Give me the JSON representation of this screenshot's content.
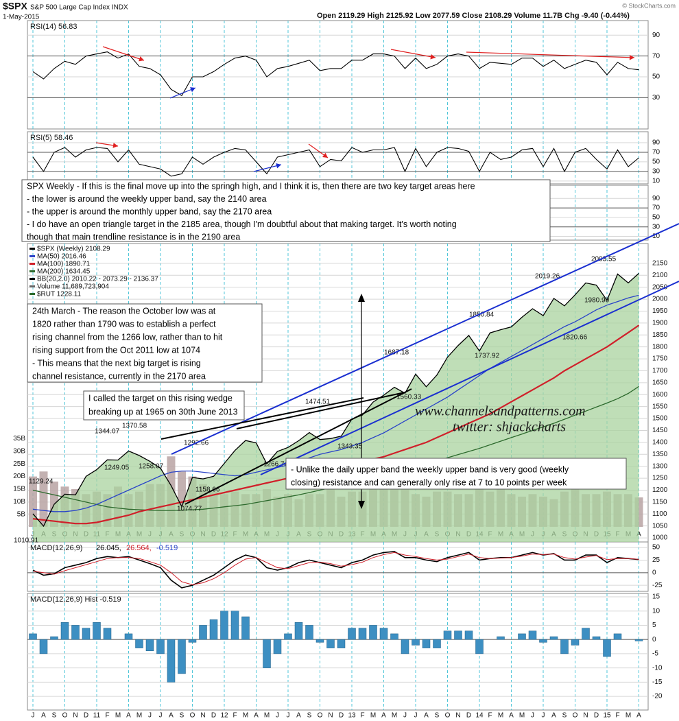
{
  "header": {
    "symbol": "$SPX",
    "name": "S&P 500 Large Cap Index INDX",
    "date": "1-May-2015",
    "quote": "Open 2119.29  High 2125.92  Low 2077.59  Close 2108.29  Volume 11.7B  Chg -9.40 (-0.44%)",
    "credit": "© StockCharts.com"
  },
  "chart_data": [
    {
      "type": "line",
      "title": "RSI(14) 56.83",
      "color": "#000000",
      "ylim": [
        0,
        104
      ],
      "yticks": [
        30,
        50,
        70,
        90
      ],
      "grid": true,
      "values": [
        55,
        48,
        58,
        65,
        62,
        70,
        72,
        74,
        68,
        72,
        60,
        58,
        52,
        38,
        32,
        50,
        50,
        55,
        62,
        68,
        70,
        66,
        50,
        58,
        60,
        63,
        66,
        56,
        58,
        58,
        66,
        66,
        72,
        72,
        70,
        58,
        68,
        58,
        62,
        70,
        72,
        70,
        58,
        64,
        63,
        62,
        68,
        68,
        60,
        66,
        58,
        62,
        66,
        64,
        52,
        64,
        58,
        56.83
      ]
    },
    {
      "type": "line",
      "title": "RSI(5) 58.46",
      "color": "#000000",
      "ylim": [
        4,
        113
      ],
      "yticks": [
        10,
        30,
        50,
        70,
        90
      ],
      "grid": true,
      "values": [
        60,
        30,
        70,
        80,
        60,
        75,
        80,
        78,
        50,
        75,
        45,
        40,
        35,
        20,
        25,
        60,
        45,
        60,
        70,
        78,
        75,
        50,
        25,
        60,
        65,
        70,
        75,
        40,
        55,
        52,
        80,
        70,
        75,
        75,
        80,
        30,
        78,
        40,
        70,
        80,
        78,
        72,
        30,
        70,
        55,
        60,
        75,
        78,
        40,
        78,
        30,
        70,
        78,
        55,
        35,
        75,
        40,
        58.46
      ]
    },
    {
      "type": "line",
      "ylim": [
        2,
        118
      ],
      "yticks": [
        10,
        30,
        50,
        70,
        90
      ],
      "grid": true
    },
    {
      "type": "line",
      "ylim": [
        983,
        2233
      ],
      "yticks": [
        1000,
        1050,
        1100,
        1150,
        1200,
        1250,
        1300,
        1350,
        1400,
        1450,
        1500,
        1550,
        1600,
        1650,
        1700,
        1750,
        1800,
        1850,
        1900,
        1950,
        2000,
        2050,
        2100,
        2150
      ],
      "grid": true,
      "y2lim": [
        0,
        37.6
      ],
      "y2ticks": [
        {
          "value": 5,
          "label": "5B"
        },
        {
          "value": 10,
          "label": "10B"
        },
        {
          "value": 15,
          "label": "15B"
        },
        {
          "value": 20,
          "label": "20B"
        },
        {
          "value": 25,
          "label": "25B"
        },
        {
          "value": 30,
          "label": "30B"
        },
        {
          "value": 35,
          "label": "35B"
        }
      ],
      "categories": [
        "J",
        "A",
        "S",
        "O",
        "N",
        "D",
        "11",
        "F",
        "M",
        "A",
        "M",
        "J",
        "J",
        "A",
        "S",
        "O",
        "N",
        "D",
        "12",
        "F",
        "M",
        "A",
        "M",
        "J",
        "J",
        "A",
        "S",
        "O",
        "N",
        "D",
        "13",
        "F",
        "M",
        "A",
        "M",
        "J",
        "J",
        "A",
        "S",
        "O",
        "N",
        "D",
        "14",
        "F",
        "M",
        "A",
        "M",
        "J",
        "J",
        "A",
        "S",
        "O",
        "N",
        "D",
        "15",
        "F",
        "M",
        "A"
      ],
      "series": [
        {
          "name": "$SPX (Weekly) 2108.29",
          "color": "#000000",
          "area_color": "#a9d39f",
          "values": [
            1101,
            1049,
            1141,
            1183,
            1180,
            1258,
            1286,
            1327,
            1326,
            1364,
            1345,
            1321,
            1292,
            1219,
            1131,
            1253,
            1247,
            1258,
            1312,
            1366,
            1408,
            1398,
            1310,
            1362,
            1379,
            1407,
            1441,
            1412,
            1416,
            1426,
            1498,
            1515,
            1569,
            1598,
            1631,
            1606,
            1686,
            1633,
            1682,
            1757,
            1806,
            1848,
            1783,
            1859,
            1872,
            1884,
            1924,
            1960,
            1931,
            2003,
            1972,
            2018,
            2068,
            2059,
            1995,
            2105,
            2068,
            2108.29
          ]
        },
        {
          "name": "MA(50) 2016.46",
          "color": "#2a44c8",
          "values": [
            1120,
            1115,
            1110,
            1110,
            1115,
            1125,
            1140,
            1160,
            1180,
            1200,
            1220,
            1240,
            1260,
            1275,
            1280,
            1280,
            1275,
            1270,
            1265,
            1260,
            1265,
            1275,
            1285,
            1295,
            1305,
            1320,
            1335,
            1350,
            1360,
            1370,
            1385,
            1400,
            1420,
            1440,
            1465,
            1490,
            1515,
            1540,
            1565,
            1590,
            1620,
            1650,
            1680,
            1710,
            1735,
            1760,
            1785,
            1810,
            1835,
            1860,
            1885,
            1905,
            1930,
            1955,
            1975,
            1990,
            2005,
            2016.46
          ]
        },
        {
          "name": "MA(100) 1890.71",
          "color": "#d0202a",
          "values": [
            1080,
            1075,
            1070,
            1065,
            1060,
            1060,
            1065,
            1075,
            1085,
            1095,
            1110,
            1120,
            1130,
            1140,
            1150,
            1160,
            1170,
            1180,
            1190,
            1200,
            1210,
            1220,
            1230,
            1240,
            1250,
            1260,
            1270,
            1280,
            1290,
            1300,
            1310,
            1320,
            1330,
            1340,
            1355,
            1370,
            1385,
            1400,
            1420,
            1440,
            1460,
            1480,
            1500,
            1520,
            1545,
            1570,
            1595,
            1620,
            1645,
            1670,
            1700,
            1725,
            1750,
            1775,
            1800,
            1830,
            1860,
            1890.71
          ]
        },
        {
          "name": "MA(200) 1634.45",
          "color": "#2d6a2d",
          "values": [
            1200,
            1190,
            1180,
            1170,
            1160,
            1150,
            1140,
            1130,
            1125,
            1120,
            1118,
            1116,
            1115,
            1115,
            1116,
            1118,
            1120,
            1125,
            1130,
            1135,
            1140,
            1148,
            1156,
            1164,
            1172,
            1180,
            1190,
            1200,
            1210,
            1220,
            1230,
            1240,
            1250,
            1262,
            1274,
            1286,
            1298,
            1310,
            1323,
            1336,
            1349,
            1362,
            1375,
            1390,
            1405,
            1420,
            1435,
            1450,
            1465,
            1480,
            1497,
            1514,
            1531,
            1548,
            1565,
            1583,
            1605,
            1634.45
          ]
        },
        {
          "name": "Volume 11,689,723,904",
          "axis": "y2",
          "color": "#b8a3a3",
          "values": [
            20,
            22,
            18,
            16,
            15,
            13,
            14,
            13,
            16,
            13,
            14,
            17,
            17,
            28,
            22,
            20,
            17,
            14,
            13,
            14,
            13,
            13,
            15,
            12,
            13,
            11,
            13,
            13,
            15,
            12,
            14,
            14,
            15,
            15,
            15,
            15,
            13,
            12,
            14,
            14,
            13,
            13,
            15,
            14,
            15,
            13,
            12,
            13,
            12,
            11,
            14,
            15,
            13,
            13,
            14,
            13,
            13,
            11.69
          ]
        }
      ],
      "legend_extra": [
        "BB(20,2.0) 2010.22 - 2073.29 - 2136.37",
        "$RUT 1228.11"
      ],
      "price_labels": [
        {
          "value": 1129.24,
          "label": "1129.24"
        },
        {
          "value": 1010.91,
          "label": "1010.91"
        },
        {
          "value": 1344.07,
          "label": "1344.07"
        },
        {
          "value": 1370.58,
          "label": "1370.58"
        },
        {
          "value": 1249.05,
          "label": "1249.05"
        },
        {
          "value": 1258.07,
          "label": "1258.07"
        },
        {
          "value": 1292.66,
          "label": "1292.66"
        },
        {
          "value": 1158.66,
          "label": "1158.66"
        },
        {
          "value": 1074.77,
          "label": "1074.77"
        },
        {
          "value": 1474.51,
          "label": "1474.51"
        },
        {
          "value": 1266.74,
          "label": "1266.74"
        },
        {
          "value": 1343.35,
          "label": "1343.35"
        },
        {
          "value": 1687.18,
          "label": "1687.18"
        },
        {
          "value": 1560.33,
          "label": "1560.33"
        },
        {
          "value": 1850.84,
          "label": "1850.84"
        },
        {
          "value": 1737.92,
          "label": "1737.92"
        },
        {
          "value": 2019.26,
          "label": "2019.26"
        },
        {
          "value": 2093.55,
          "label": "2093.55"
        },
        {
          "value": 1980.9,
          "label": "1980.90"
        },
        {
          "value": 1820.66,
          "label": "1820.66"
        }
      ],
      "notes": [
        [
          "SPX Weekly - If this is the final move up into the springh high, and I think it is, then there are two key target areas here",
          "- the lower is around the weekly upper band, say the 2140 area",
          "- the upper is around the monthly upper band, say the 2170 area",
          "- I do have an open triangle target in the 2185 area, though I'm doubtful about that making target. It's worth noting",
          "though that main trendline resistance is in the 2190 area"
        ],
        [
          "24th March - The reason the October low was at",
          "1820 rather than 1790 was to establish a perfect",
          "rising channel from the 1266 low, rather than to hit",
          "rising support from the Oct 2011 low at 1074",
          "- This means that the next big target is rising",
          "channel resistance, currently in the 2170 area"
        ],
        [
          "I called the target on this rising wedge",
          "breaking up at 1965 on 30th June 2013"
        ],
        [
          "- Unlike the daily upper band the weekly upper band is very good (weekly",
          "closing) resistance and can generally only rise at 7 to 10 points per week"
        ]
      ],
      "watermark": [
        "www.channelsandpatterns.com",
        "twitter: shjackcharts"
      ]
    },
    {
      "type": "line",
      "title": "MACD(12,26,9)",
      "readouts": [
        "26.045,",
        "26.564,",
        "-0.519"
      ],
      "ylim": [
        -37,
        61
      ],
      "yticks": [
        -25,
        0,
        25,
        50
      ],
      "grid": true,
      "series": [
        {
          "color": "#000000",
          "values": [
            5,
            -5,
            -2,
            10,
            15,
            20,
            28,
            32,
            30,
            32,
            25,
            18,
            10,
            -15,
            -30,
            -25,
            -15,
            -5,
            10,
            25,
            35,
            30,
            10,
            5,
            10,
            20,
            25,
            20,
            15,
            10,
            20,
            25,
            35,
            40,
            42,
            30,
            30,
            25,
            22,
            30,
            35,
            40,
            25,
            28,
            30,
            30,
            35,
            40,
            35,
            38,
            25,
            25,
            35,
            35,
            20,
            30,
            28,
            26.045
          ]
        },
        {
          "color": "#d0202a",
          "values": [
            3,
            0,
            -3,
            4,
            10,
            16,
            22,
            28,
            30,
            30,
            28,
            22,
            15,
            0,
            -18,
            -24,
            -20,
            -12,
            0,
            15,
            27,
            30,
            20,
            10,
            8,
            14,
            20,
            21,
            18,
            13,
            16,
            21,
            30,
            36,
            40,
            35,
            32,
            28,
            25,
            27,
            32,
            37,
            30,
            28,
            29,
            30,
            33,
            37,
            36,
            37,
            30,
            27,
            31,
            34,
            26,
            28,
            28,
            26.564
          ]
        }
      ]
    },
    {
      "type": "bar",
      "title": "MACD(12,26,9) Hist -0.519",
      "color": "#3d8fc2",
      "ylim": [
        -24.8,
        16.2
      ],
      "yticks": [
        -20,
        -15,
        -10,
        -5,
        0,
        5,
        10,
        15
      ],
      "grid": true,
      "categories": [
        "J",
        "A",
        "S",
        "O",
        "N",
        "D",
        "11",
        "F",
        "M",
        "A",
        "M",
        "J",
        "J",
        "A",
        "S",
        "O",
        "N",
        "D",
        "12",
        "F",
        "M",
        "A",
        "M",
        "J",
        "J",
        "A",
        "S",
        "O",
        "N",
        "D",
        "13",
        "F",
        "M",
        "A",
        "M",
        "J",
        "J",
        "A",
        "S",
        "O",
        "N",
        "D",
        "14",
        "F",
        "M",
        "A",
        "M",
        "J",
        "J",
        "A",
        "S",
        "O",
        "N",
        "D",
        "15",
        "F",
        "M",
        "A"
      ],
      "values": [
        2,
        -5,
        1,
        6,
        5,
        4,
        6,
        4,
        0,
        2,
        -3,
        -4,
        -5,
        -15,
        -12,
        -1,
        5,
        7,
        10,
        10,
        8,
        0,
        -10,
        -5,
        2,
        6,
        5,
        -1,
        -3,
        -3,
        4,
        4,
        5,
        4,
        2,
        -5,
        -2,
        -3,
        -3,
        3,
        3,
        3,
        -5,
        0,
        1,
        0,
        2,
        3,
        -1,
        1,
        -5,
        -2,
        4,
        1,
        -6,
        2,
        0,
        -0.519
      ]
    }
  ]
}
